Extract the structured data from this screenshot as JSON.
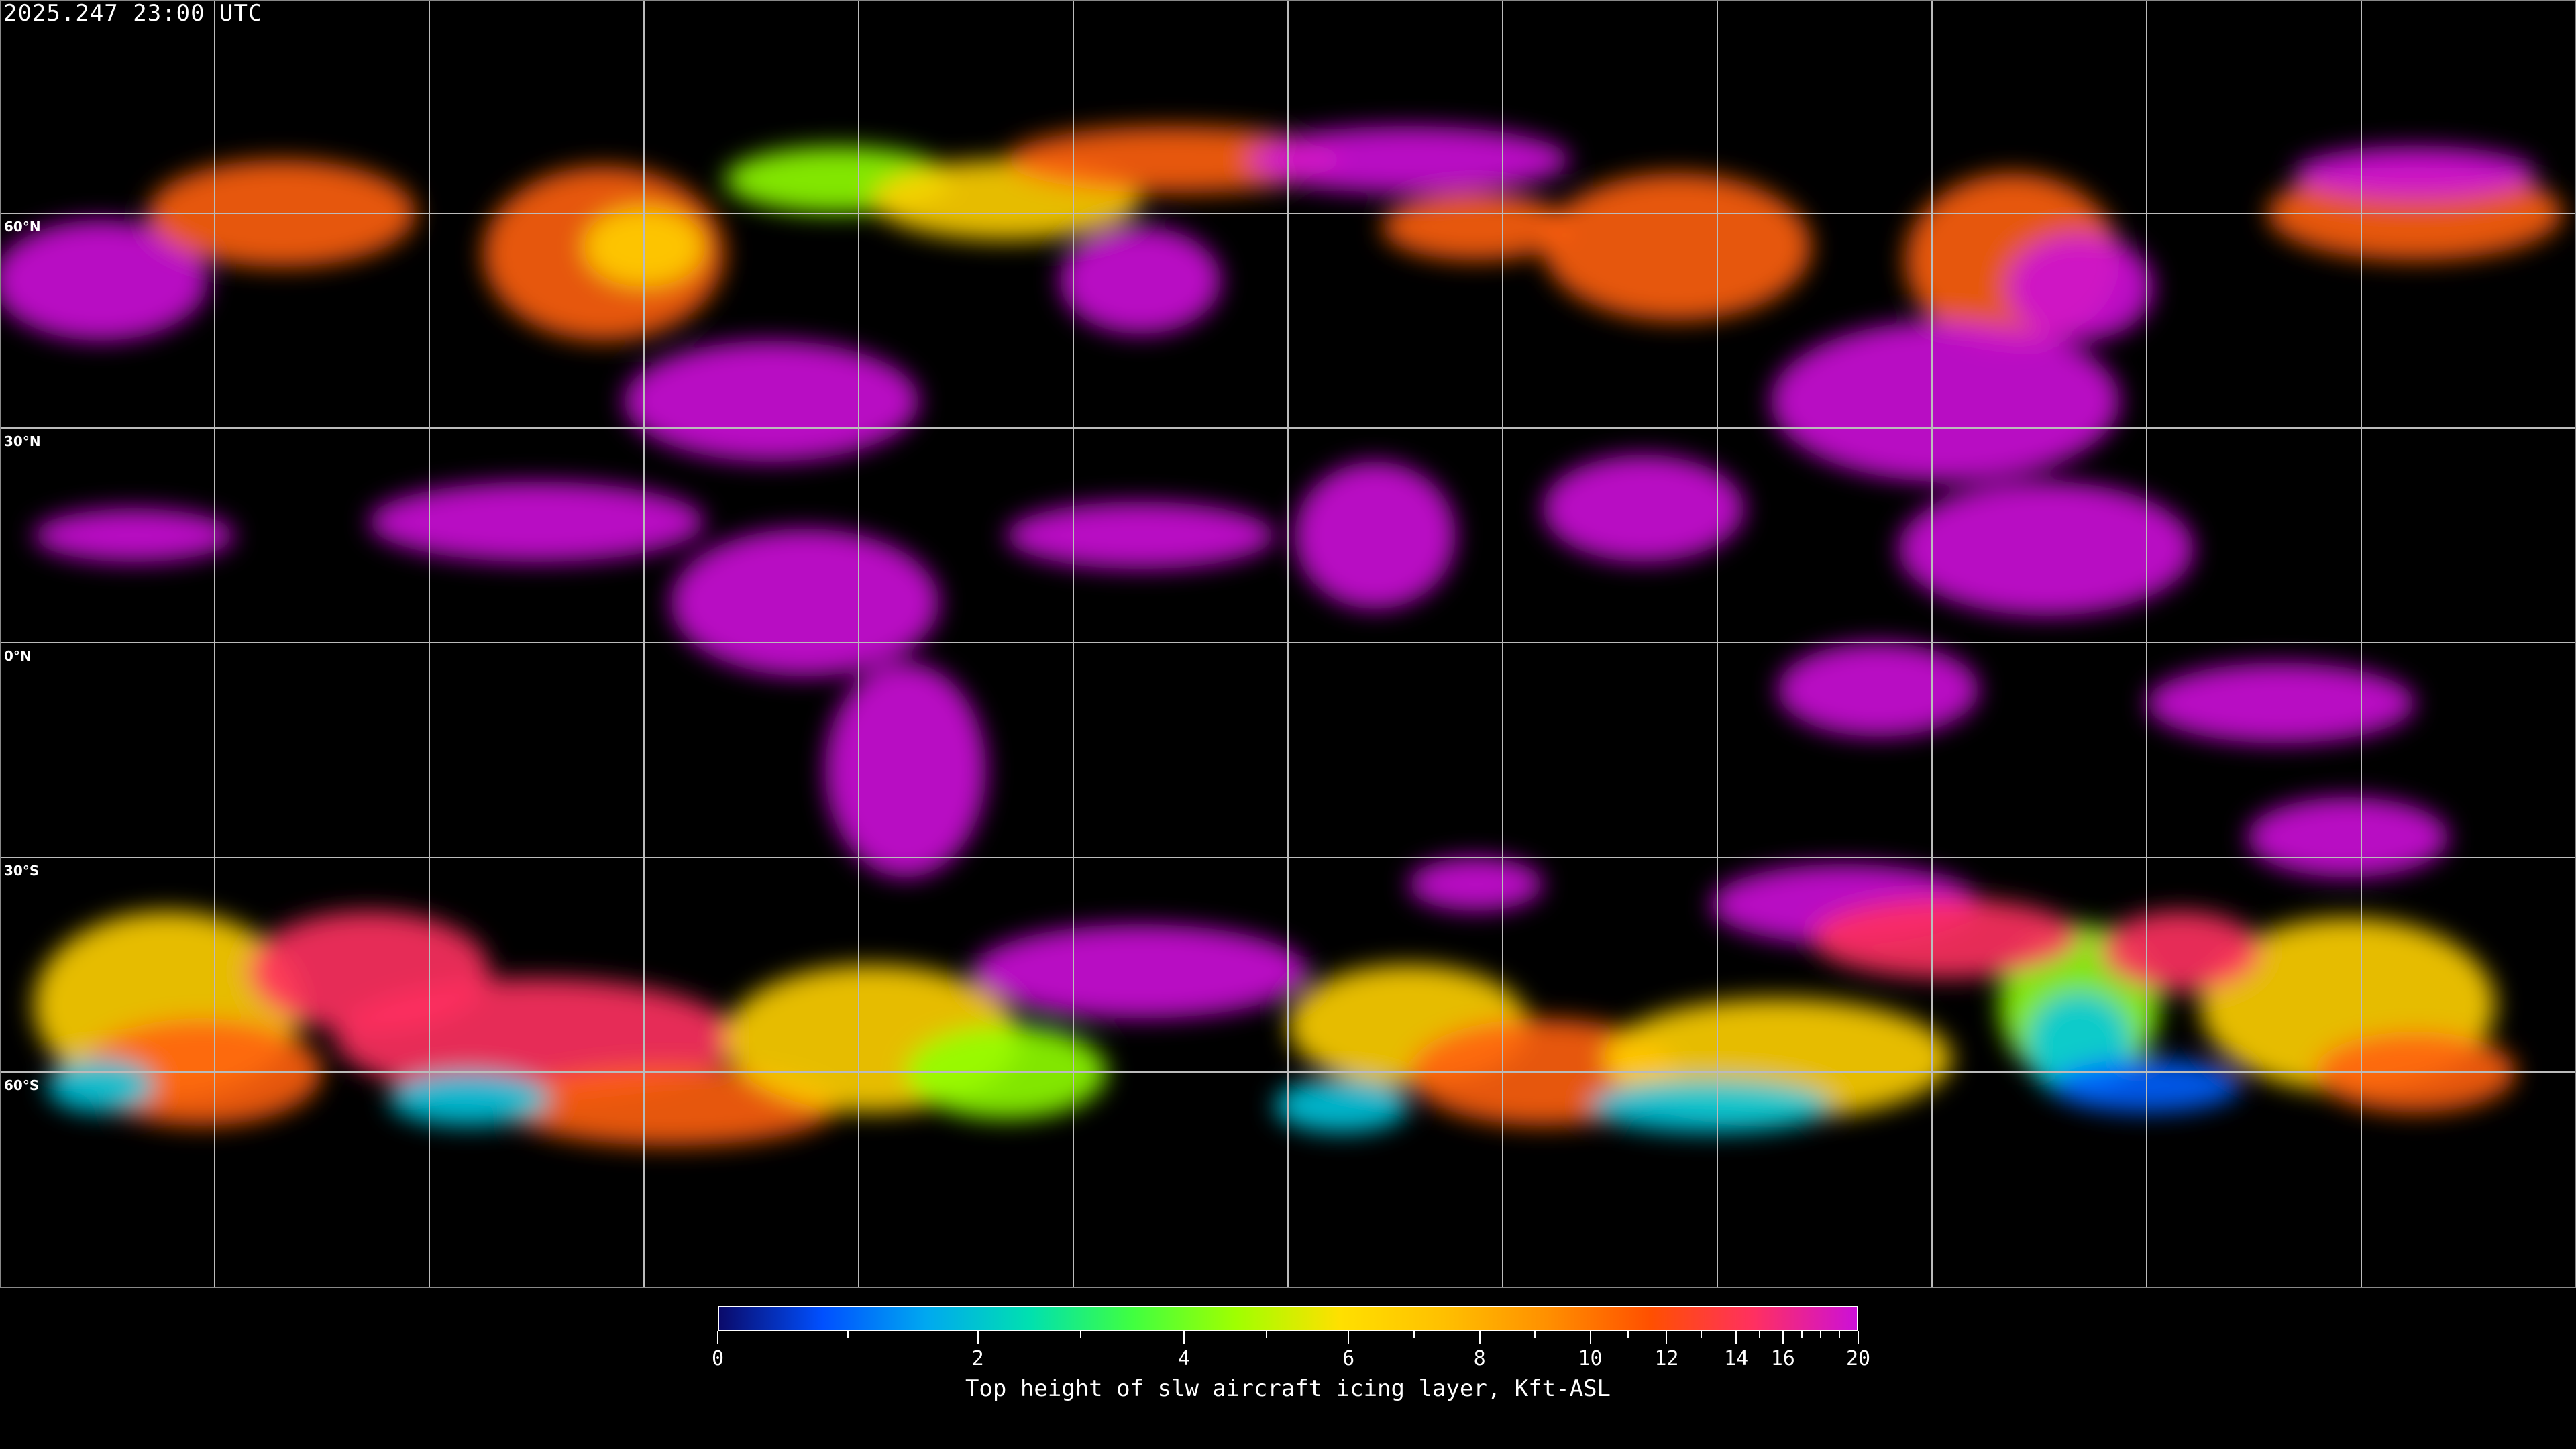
{
  "timestamp": "2025.247 23:00 UTC",
  "map": {
    "projection": "equirectangular",
    "grid_spacing_deg": 30,
    "lat_labels": [
      "60°N",
      "30°N",
      "0°N",
      "30°S",
      "60°S"
    ],
    "background_color": "#000000",
    "coastline_color": "#ffffff",
    "grid_color": "#bbbbbb"
  },
  "colorbar": {
    "title": "Top height of slw aircraft icing layer, Kft-ASL",
    "range": [
      0,
      20
    ],
    "tick_labels": [
      "0",
      "2",
      "4",
      "6",
      "8",
      "10",
      "12",
      "14",
      "16",
      "20"
    ],
    "minor_ticks": [
      1,
      3,
      5,
      7,
      9,
      11,
      13,
      15,
      17,
      18,
      19
    ],
    "colors": [
      "#0a0a6a",
      "#0050ff",
      "#00a8f0",
      "#00e0b0",
      "#40ff40",
      "#a0ff00",
      "#ffe000",
      "#ffc000",
      "#ff9000",
      "#ff5000",
      "#ff3060",
      "#cc10d8"
    ]
  }
}
